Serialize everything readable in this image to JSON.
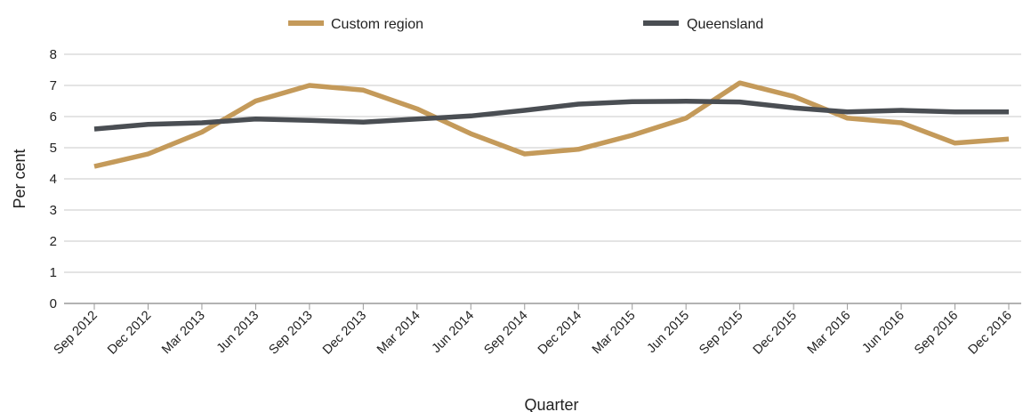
{
  "chart_data": {
    "type": "line",
    "categories": [
      "Sep 2012",
      "Dec 2012",
      "Mar 2013",
      "Jun 2013",
      "Sep 2013",
      "Dec 2013",
      "Mar 2014",
      "Jun 2014",
      "Sep 2014",
      "Dec 2014",
      "Mar 2015",
      "Jun 2015",
      "Sep 2015",
      "Dec 2015",
      "Mar 2016",
      "Jun 2016",
      "Sep 2016",
      "Dec 2016"
    ],
    "series": [
      {
        "name": "Custom region",
        "color": "#c49a5a",
        "values": [
          4.4,
          4.8,
          5.5,
          6.5,
          7.0,
          6.85,
          6.25,
          5.45,
          4.8,
          4.95,
          5.4,
          5.95,
          7.08,
          6.65,
          5.95,
          5.8,
          5.15,
          5.28
        ]
      },
      {
        "name": "Queensland",
        "color": "#4a4e53",
        "values": [
          5.6,
          5.75,
          5.8,
          5.92,
          5.88,
          5.82,
          5.92,
          6.02,
          6.2,
          6.4,
          6.48,
          6.49,
          6.47,
          6.28,
          6.15,
          6.2,
          6.15,
          6.15
        ]
      }
    ],
    "title": "",
    "xlabel": "Quarter",
    "ylabel": "Per cent",
    "ylim": [
      0,
      8
    ],
    "yticks": [
      0,
      1,
      2,
      3,
      4,
      5,
      6,
      7,
      8
    ],
    "grid": true,
    "legend": "top-center"
  }
}
